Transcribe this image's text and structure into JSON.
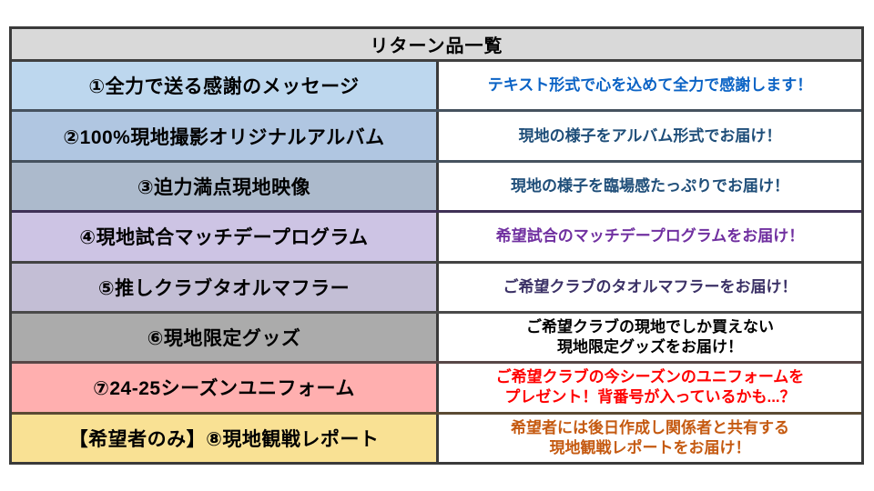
{
  "page": {
    "background": "#ffffff"
  },
  "table": {
    "title": "リターン品一覧",
    "header_bg": "#d9d9d9",
    "outer_border_color": "#3a3a3a",
    "rows": [
      {
        "item": "①全力で送る感謝のメッセージ",
        "desc": "テキスト形式で心を込めて全力で感謝します！",
        "item_bg": "#bdd7ee",
        "desc_color": "#0b63c5",
        "border_top": "#404040"
      },
      {
        "item": "②100%現地撮影オリジナルアルバム",
        "desc": "現地の様子をアルバム形式でお届け！",
        "item_bg": "#b0c6e1",
        "desc_color": "#1f4e79",
        "border_top": "#46525f"
      },
      {
        "item": "③迫力満点現地映像",
        "desc": "現地の様子を臨場感たっぷりでお届け！",
        "item_bg": "#acbacc",
        "desc_color": "#1f4e79",
        "border_top": "#46525f"
      },
      {
        "item": "④現地試合マッチデープログラム",
        "desc": "希望試合のマッチデープログラムをお届け！",
        "item_bg": "#cdc4e4",
        "desc_color": "#7030a0",
        "border_top": "#3f3156"
      },
      {
        "item": "⑤推しクラブタオルマフラー",
        "desc": "ご希望クラブのタオルマフラーをお届け！",
        "item_bg": "#c3bed5",
        "desc_color": "#3b3166",
        "border_top": "#434343"
      },
      {
        "item": "⑥現地限定グッズ",
        "desc": "ご希望クラブの現地でしか買えない\n現地限定グッズをお届け！",
        "item_bg": "#ababab",
        "desc_color": "#000000",
        "border_top": "#4a4a4a"
      },
      {
        "item": "⑦24-25シーズンユニフォーム",
        "desc": "ご希望クラブの今シーズンのユニフォームを\nプレゼント！背番号が入っているかも...？",
        "item_bg": "#ffafaf",
        "desc_color": "#ff0000",
        "border_top": "#584747"
      },
      {
        "item": "【希望者のみ】⑧現地観戦レポート",
        "desc": "希望者には後日作成し関係者と共有する\n現地観戦レポートをお届け！",
        "item_bg": "#f9e194",
        "desc_color": "#c55a11",
        "border_top": "#5b4a33"
      }
    ]
  }
}
